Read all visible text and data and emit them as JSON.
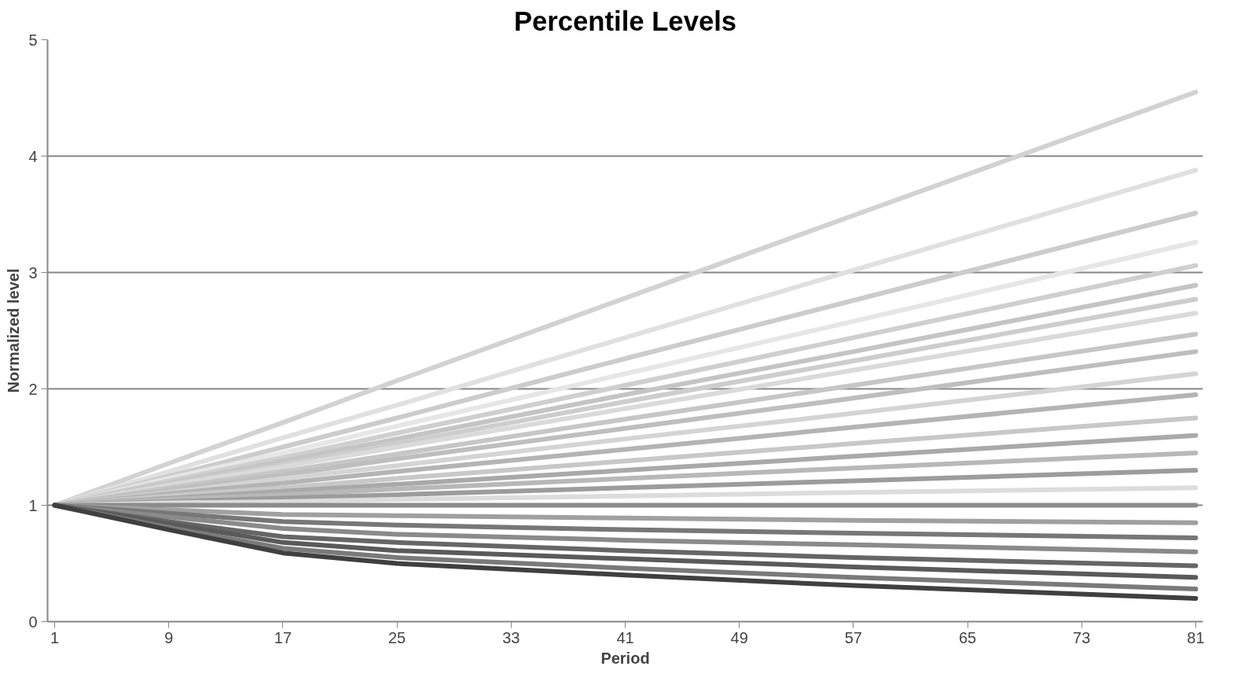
{
  "chart_data": {
    "type": "line",
    "title": "Percentile Levels",
    "xlabel": "Period",
    "ylabel": "Normalized level",
    "x": [
      1,
      9,
      17,
      25,
      41,
      57,
      81
    ],
    "xlim": [
      0.5,
      81.5
    ],
    "xticks": [
      1,
      9,
      17,
      25,
      33,
      41,
      49,
      57,
      65,
      73,
      81
    ],
    "ylim": [
      0,
      5
    ],
    "yticks": [
      0,
      1,
      2,
      3,
      4,
      5
    ],
    "grid": "y",
    "marker": "none",
    "line_style": "solid",
    "series": [
      {
        "color": "#d2d2d2",
        "values": [
          1,
          1.36,
          1.71,
          2.07,
          2.78,
          3.49,
          4.55
        ]
      },
      {
        "color": "#e0e0e0",
        "values": [
          1,
          1.29,
          1.58,
          1.86,
          2.44,
          3.02,
          3.88
        ]
      },
      {
        "color": "#cccccc",
        "values": [
          1,
          1.25,
          1.5,
          1.75,
          2.26,
          2.76,
          3.51
        ]
      },
      {
        "color": "#e6e6e6",
        "values": [
          1,
          1.23,
          1.45,
          1.68,
          2.13,
          2.58,
          3.26
        ]
      },
      {
        "color": "#cfcfcf",
        "values": [
          1,
          1.21,
          1.41,
          1.62,
          2.03,
          2.44,
          3.06
        ]
      },
      {
        "color": "#c4c4c4",
        "values": [
          1,
          1.19,
          1.38,
          1.57,
          1.95,
          2.32,
          2.89
        ]
      },
      {
        "color": "#cdcdcd",
        "values": [
          1,
          1.18,
          1.35,
          1.53,
          1.89,
          2.24,
          2.77
        ]
      },
      {
        "color": "#dadada",
        "values": [
          1,
          1.17,
          1.33,
          1.5,
          1.83,
          2.16,
          2.65
        ]
      },
      {
        "color": "#c6c6c6",
        "values": [
          1,
          1.15,
          1.29,
          1.44,
          1.74,
          2.03,
          2.47
        ]
      },
      {
        "color": "#bebebe",
        "values": [
          1,
          1.13,
          1.26,
          1.4,
          1.66,
          1.92,
          2.32
        ]
      },
      {
        "color": "#d4d4d4",
        "values": [
          1,
          1.11,
          1.23,
          1.34,
          1.57,
          1.79,
          2.13
        ]
      },
      {
        "color": "#b4b4b4",
        "values": [
          1,
          1.1,
          1.19,
          1.29,
          1.48,
          1.67,
          1.95
        ]
      },
      {
        "color": "#c8c8c8",
        "values": [
          1,
          1.08,
          1.15,
          1.23,
          1.38,
          1.53,
          1.75
        ]
      },
      {
        "color": "#a9a9a9",
        "values": [
          1,
          1.06,
          1.12,
          1.18,
          1.3,
          1.42,
          1.6
        ]
      },
      {
        "color": "#b8b8b8",
        "values": [
          1,
          1.05,
          1.09,
          1.14,
          1.23,
          1.32,
          1.45
        ]
      },
      {
        "color": "#9c9c9c",
        "values": [
          1,
          1.03,
          1.06,
          1.09,
          1.15,
          1.21,
          1.3
        ]
      },
      {
        "color": "#dcdcdc",
        "values": [
          1,
          1.02,
          1.03,
          1.05,
          1.08,
          1.11,
          1.15
        ]
      },
      {
        "color": "#8c8c8c",
        "values": [
          1,
          1,
          1,
          1,
          1,
          1,
          1
        ]
      },
      {
        "color": "#a0a0a0",
        "values": [
          1,
          0.96,
          0.92,
          0.91,
          0.89,
          0.87,
          0.85
        ]
      },
      {
        "color": "#777777",
        "values": [
          1,
          0.93,
          0.86,
          0.83,
          0.79,
          0.76,
          0.72
        ]
      },
      {
        "color": "#8a8a8a",
        "values": [
          1,
          0.9,
          0.8,
          0.75,
          0.7,
          0.66,
          0.6
        ]
      },
      {
        "color": "#666666",
        "values": [
          1,
          0.86,
          0.73,
          0.68,
          0.61,
          0.55,
          0.48
        ]
      },
      {
        "color": "#5a5a5a",
        "values": [
          1,
          0.84,
          0.68,
          0.61,
          0.54,
          0.47,
          0.38
        ]
      },
      {
        "color": "#7a7a7a",
        "values": [
          1,
          0.81,
          0.63,
          0.55,
          0.46,
          0.38,
          0.28
        ]
      },
      {
        "color": "#404040",
        "values": [
          1,
          0.79,
          0.59,
          0.5,
          0.4,
          0.31,
          0.2
        ]
      }
    ]
  }
}
